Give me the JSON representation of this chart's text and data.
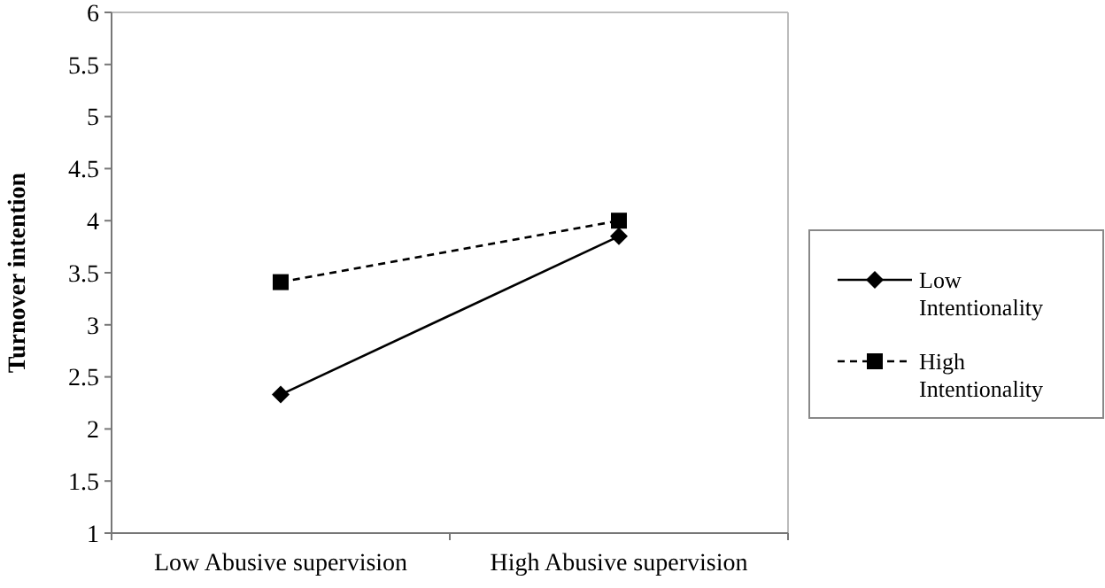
{
  "chart_data": {
    "type": "line",
    "xlabel": null,
    "ylabel": "Turnover intention",
    "categories": [
      "Low Abusive supervision",
      "High Abusive supervision"
    ],
    "series": [
      {
        "name": "Low Intentionality",
        "color": "#000000",
        "values": [
          2.33,
          3.85
        ],
        "marker": "diamond",
        "line_style": "solid"
      },
      {
        "name": "High Intentionality",
        "color": "#000000",
        "values": [
          3.41,
          4.0
        ],
        "marker": "square",
        "line_style": "dashed"
      }
    ],
    "ylim": [
      1,
      6
    ],
    "yticks": [
      1,
      1.5,
      2,
      2.5,
      3,
      3.5,
      4,
      4.5,
      5,
      5.5,
      6
    ],
    "grid": false,
    "legend": "right"
  }
}
